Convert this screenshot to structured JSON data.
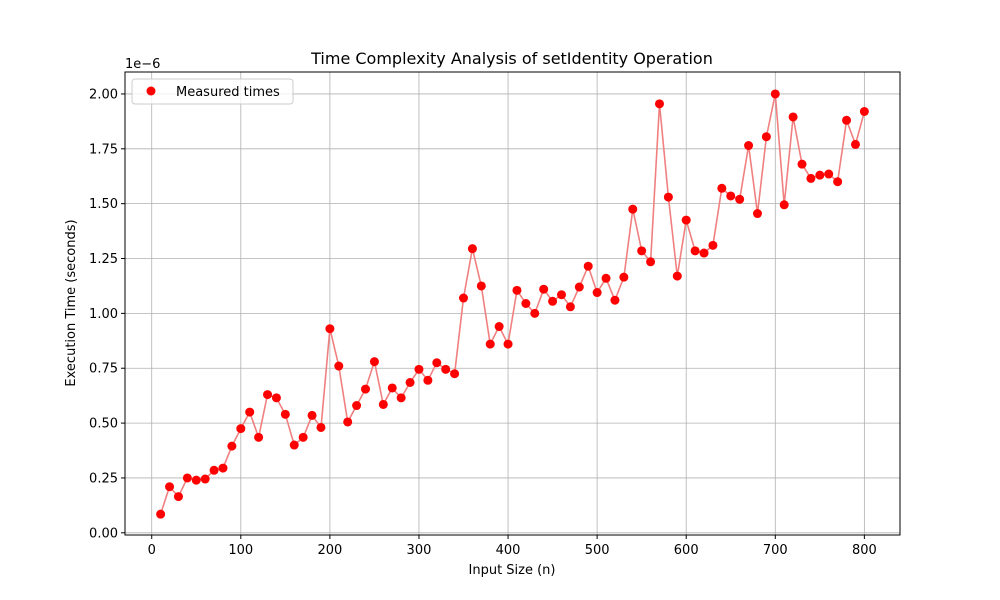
{
  "chart_data": {
    "type": "line",
    "title": "Time Complexity Analysis of setIdentity Operation",
    "xlabel": "Input Size (n)",
    "ylabel": "Execution Time (seconds)",
    "y_offset_label": "1e−6",
    "y_scale_factor": 1e-06,
    "xlim": [
      -30,
      840
    ],
    "ylim": [
      -0.01,
      2.1
    ],
    "xticks": [
      0,
      100,
      200,
      300,
      400,
      500,
      600,
      700,
      800
    ],
    "xtick_labels": [
      "0",
      "100",
      "200",
      "300",
      "400",
      "500",
      "600",
      "700",
      "800"
    ],
    "yticks": [
      0.0,
      0.25,
      0.5,
      0.75,
      1.0,
      1.25,
      1.5,
      1.75,
      2.0
    ],
    "ytick_labels": [
      "0.00",
      "0.25",
      "0.50",
      "0.75",
      "1.00",
      "1.25",
      "1.50",
      "1.75",
      "2.00"
    ],
    "grid": true,
    "legend_position": "top-left",
    "series": [
      {
        "name": "Measured times",
        "marker_color": "#ff0000",
        "line_color": "#f08080",
        "x": [
          10,
          20,
          30,
          40,
          50,
          60,
          70,
          80,
          90,
          100,
          110,
          120,
          130,
          140,
          150,
          160,
          170,
          180,
          190,
          200,
          210,
          220,
          230,
          240,
          250,
          260,
          270,
          280,
          290,
          300,
          310,
          320,
          330,
          340,
          350,
          360,
          370,
          380,
          390,
          400,
          410,
          420,
          430,
          440,
          450,
          460,
          470,
          480,
          490,
          500,
          510,
          520,
          530,
          540,
          550,
          560,
          570,
          580,
          590,
          600,
          610,
          620,
          630,
          640,
          650,
          660,
          670,
          680,
          690,
          700,
          710,
          720,
          730,
          740,
          750,
          760,
          770,
          780,
          790,
          800
        ],
        "y": [
          0.085,
          0.21,
          0.165,
          0.25,
          0.24,
          0.245,
          0.285,
          0.295,
          0.395,
          0.475,
          0.55,
          0.435,
          0.63,
          0.615,
          0.54,
          0.4,
          0.435,
          0.535,
          0.48,
          0.93,
          0.76,
          0.505,
          0.58,
          0.655,
          0.78,
          0.585,
          0.66,
          0.615,
          0.685,
          0.745,
          0.695,
          0.775,
          0.745,
          0.725,
          1.07,
          1.295,
          1.125,
          0.86,
          0.94,
          0.86,
          1.105,
          1.045,
          1.0,
          1.11,
          1.055,
          1.085,
          1.03,
          1.12,
          1.215,
          1.095,
          1.16,
          1.06,
          1.165,
          1.475,
          1.285,
          1.235,
          1.955,
          1.53,
          1.17,
          1.425,
          1.285,
          1.275,
          1.31,
          1.57,
          1.535,
          1.52,
          1.765,
          1.455,
          1.805,
          2.0,
          1.495,
          1.895,
          1.68,
          1.615,
          1.63,
          1.635,
          1.6,
          1.88,
          1.77,
          1.92
        ]
      }
    ]
  }
}
